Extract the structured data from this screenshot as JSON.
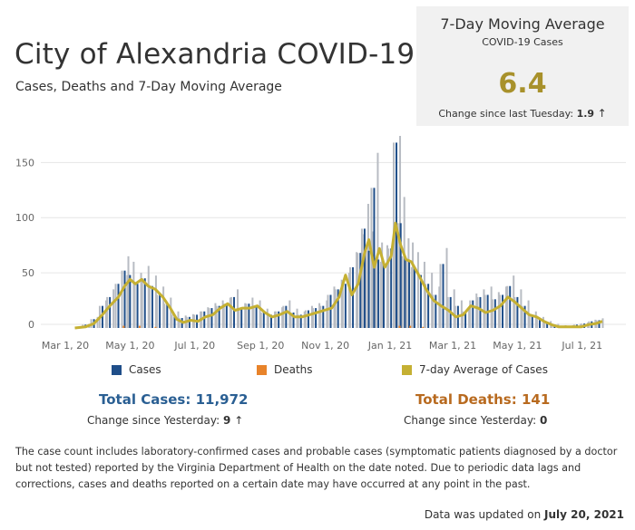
{
  "header": {
    "title": "City of Alexandria COVID-19",
    "subtitle": "Cases, Deaths  and 7-Day Moving Average"
  },
  "kpi": {
    "title": "7-Day Moving Average",
    "subtitle": "COVID-19 Cases",
    "value": "6.4",
    "change_label": "Change since last Tuesday:",
    "change_value": "1.9",
    "change_arrow": "↑"
  },
  "legend": {
    "cases": "Cases",
    "deaths": "Deaths",
    "avg": "7-day Average of Cases"
  },
  "totals": {
    "cases_label": "Total Cases: 11,972",
    "cases_change_label": "Change since Yesterday:",
    "cases_change_value": "9",
    "cases_arrow": "↑",
    "deaths_label": "Total Deaths: 141",
    "deaths_change_label": "Change since Yesterday:",
    "deaths_change_value": "0"
  },
  "note": "The case count includes laboratory-confirmed cases and probable cases (symptomatic patients diagnosed by a doctor but not tested) reported by the Virginia Department of Health on the date noted. Due to periodic data lags and corrections, cases and deaths reported on a certain date may have occurred at any point in the past.",
  "updated": {
    "prefix": "Data was updated on",
    "date": "July 20, 2021"
  },
  "colors": {
    "cases": "#1f4e89",
    "cases_gray": "#b8bcc3",
    "deaths": "#e8832a",
    "avg": "#c5b033",
    "cases_total": "#2a5f93",
    "deaths_total": "#b86a1f",
    "kpi_value": "#a8912b"
  },
  "chart_data": {
    "type": "bar",
    "x_axis": {
      "ticks": [
        "Mar 1, 20",
        "May 1, 20",
        "Jul 1, 20",
        "Sep 1, 20",
        "Nov 1, 20",
        "Jan 1, 21",
        "Mar 1, 21",
        "May 1, 21",
        "Jul 1, 21"
      ],
      "range": [
        "2020-03-01",
        "2021-07-20"
      ]
    },
    "y_axis": {
      "ticks": [
        0,
        50,
        100,
        150
      ],
      "range": [
        0,
        170
      ]
    },
    "grid": true,
    "series": [
      {
        "name": "Cases",
        "color": "#1f4e89",
        "points": [
          [
            "2020-03-20",
            3
          ],
          [
            "2020-03-28",
            8
          ],
          [
            "2020-04-05",
            20
          ],
          [
            "2020-04-12",
            28
          ],
          [
            "2020-04-20",
            40
          ],
          [
            "2020-04-26",
            52
          ],
          [
            "2020-05-01",
            48
          ],
          [
            "2020-05-08",
            40
          ],
          [
            "2020-05-15",
            45
          ],
          [
            "2020-05-22",
            38
          ],
          [
            "2020-05-29",
            30
          ],
          [
            "2020-06-05",
            22
          ],
          [
            "2020-06-12",
            12
          ],
          [
            "2020-06-19",
            9
          ],
          [
            "2020-06-26",
            10
          ],
          [
            "2020-07-03",
            12
          ],
          [
            "2020-07-10",
            15
          ],
          [
            "2020-07-17",
            18
          ],
          [
            "2020-07-24",
            20
          ],
          [
            "2020-07-31",
            22
          ],
          [
            "2020-08-07",
            28
          ],
          [
            "2020-08-14",
            18
          ],
          [
            "2020-08-21",
            22
          ],
          [
            "2020-08-28",
            20
          ],
          [
            "2020-09-04",
            14
          ],
          [
            "2020-09-11",
            12
          ],
          [
            "2020-09-18",
            15
          ],
          [
            "2020-09-25",
            20
          ],
          [
            "2020-10-02",
            14
          ],
          [
            "2020-10-09",
            12
          ],
          [
            "2020-10-16",
            16
          ],
          [
            "2020-10-23",
            18
          ],
          [
            "2020-10-30",
            20
          ],
          [
            "2020-11-06",
            30
          ],
          [
            "2020-11-13",
            35
          ],
          [
            "2020-11-20",
            40
          ],
          [
            "2020-11-27",
            55
          ],
          [
            "2020-12-04",
            68
          ],
          [
            "2020-12-08",
            90
          ],
          [
            "2020-12-12",
            70
          ],
          [
            "2020-12-17",
            127
          ],
          [
            "2020-12-21",
            62
          ],
          [
            "2020-12-26",
            60
          ],
          [
            "2021-01-02",
            72
          ],
          [
            "2021-01-07",
            168
          ],
          [
            "2021-01-11",
            95
          ],
          [
            "2021-01-15",
            65
          ],
          [
            "2021-01-19",
            62
          ],
          [
            "2021-01-24",
            55
          ],
          [
            "2021-01-30",
            48
          ],
          [
            "2021-02-06",
            40
          ],
          [
            "2021-02-13",
            30
          ],
          [
            "2021-02-20",
            58
          ],
          [
            "2021-02-27",
            28
          ],
          [
            "2021-03-06",
            20
          ],
          [
            "2021-03-13",
            15
          ],
          [
            "2021-03-20",
            25
          ],
          [
            "2021-03-27",
            28
          ],
          [
            "2021-04-03",
            30
          ],
          [
            "2021-04-10",
            26
          ],
          [
            "2021-04-17",
            30
          ],
          [
            "2021-04-24",
            38
          ],
          [
            "2021-05-01",
            28
          ],
          [
            "2021-05-08",
            20
          ],
          [
            "2021-05-15",
            12
          ],
          [
            "2021-05-22",
            8
          ],
          [
            "2021-05-29",
            5
          ],
          [
            "2021-06-05",
            3
          ],
          [
            "2021-06-12",
            2
          ],
          [
            "2021-06-19",
            2
          ],
          [
            "2021-06-26",
            3
          ],
          [
            "2021-07-03",
            4
          ],
          [
            "2021-07-10",
            6
          ],
          [
            "2021-07-17",
            7
          ]
        ]
      },
      {
        "name": "Deaths",
        "color": "#e8832a",
        "points": [
          [
            "2020-04-25",
            2
          ],
          [
            "2020-05-10",
            2
          ],
          [
            "2020-05-25",
            1
          ],
          [
            "2021-01-10",
            2
          ],
          [
            "2021-01-20",
            2
          ],
          [
            "2021-02-01",
            1
          ]
        ]
      },
      {
        "name": "7-day Average of Cases",
        "color": "#c5b033",
        "points": [
          [
            "2020-03-10",
            0
          ],
          [
            "2020-03-20",
            1
          ],
          [
            "2020-03-28",
            4
          ],
          [
            "2020-04-05",
            12
          ],
          [
            "2020-04-12",
            20
          ],
          [
            "2020-04-20",
            28
          ],
          [
            "2020-04-26",
            38
          ],
          [
            "2020-05-01",
            44
          ],
          [
            "2020-05-06",
            40
          ],
          [
            "2020-05-12",
            44
          ],
          [
            "2020-05-18",
            38
          ],
          [
            "2020-05-25",
            35
          ],
          [
            "2020-06-01",
            28
          ],
          [
            "2020-06-08",
            18
          ],
          [
            "2020-06-14",
            8
          ],
          [
            "2020-06-20",
            5
          ],
          [
            "2020-06-27",
            7
          ],
          [
            "2020-07-04",
            6
          ],
          [
            "2020-07-11",
            10
          ],
          [
            "2020-07-18",
            12
          ],
          [
            "2020-07-25",
            18
          ],
          [
            "2020-08-01",
            22
          ],
          [
            "2020-08-08",
            16
          ],
          [
            "2020-08-15",
            18
          ],
          [
            "2020-08-22",
            18
          ],
          [
            "2020-08-29",
            20
          ],
          [
            "2020-09-05",
            14
          ],
          [
            "2020-09-12",
            10
          ],
          [
            "2020-09-19",
            12
          ],
          [
            "2020-09-26",
            15
          ],
          [
            "2020-10-03",
            10
          ],
          [
            "2020-10-10",
            10
          ],
          [
            "2020-10-17",
            12
          ],
          [
            "2020-10-24",
            14
          ],
          [
            "2020-10-31",
            16
          ],
          [
            "2020-11-07",
            18
          ],
          [
            "2020-11-14",
            28
          ],
          [
            "2020-11-20",
            48
          ],
          [
            "2020-11-26",
            30
          ],
          [
            "2020-12-02",
            40
          ],
          [
            "2020-12-08",
            68
          ],
          [
            "2020-12-12",
            80
          ],
          [
            "2020-12-17",
            55
          ],
          [
            "2020-12-22",
            72
          ],
          [
            "2020-12-27",
            55
          ],
          [
            "2021-01-02",
            65
          ],
          [
            "2021-01-06",
            95
          ],
          [
            "2021-01-11",
            75
          ],
          [
            "2021-01-16",
            62
          ],
          [
            "2021-01-21",
            60
          ],
          [
            "2021-01-28",
            48
          ],
          [
            "2021-02-04",
            35
          ],
          [
            "2021-02-11",
            25
          ],
          [
            "2021-02-18",
            20
          ],
          [
            "2021-02-25",
            16
          ],
          [
            "2021-03-04",
            10
          ],
          [
            "2021-03-11",
            12
          ],
          [
            "2021-03-18",
            20
          ],
          [
            "2021-03-25",
            18
          ],
          [
            "2021-04-01",
            14
          ],
          [
            "2021-04-08",
            16
          ],
          [
            "2021-04-15",
            20
          ],
          [
            "2021-04-22",
            28
          ],
          [
            "2021-04-28",
            24
          ],
          [
            "2021-05-05",
            18
          ],
          [
            "2021-05-12",
            12
          ],
          [
            "2021-05-19",
            10
          ],
          [
            "2021-05-26",
            6
          ],
          [
            "2021-06-02",
            3
          ],
          [
            "2021-06-09",
            1
          ],
          [
            "2021-06-16",
            1
          ],
          [
            "2021-06-23",
            1
          ],
          [
            "2021-06-30",
            1
          ],
          [
            "2021-07-07",
            3
          ],
          [
            "2021-07-14",
            4
          ],
          [
            "2021-07-20",
            6
          ]
        ]
      }
    ]
  }
}
